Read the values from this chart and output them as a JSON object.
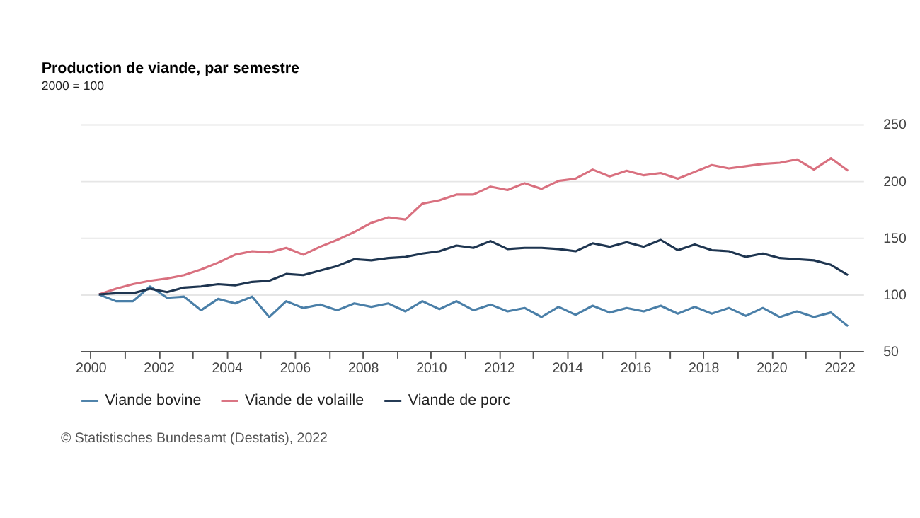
{
  "chart_data": {
    "type": "line",
    "title": "Production de viande, par semestre",
    "subtitle": "2000 = 100",
    "annotations": [
      "© Statistisches Bundesamt (Destatis), 2022"
    ],
    "x": [
      2000.25,
      2000.75,
      2001.25,
      2001.75,
      2002.25,
      2002.75,
      2003.25,
      2003.75,
      2004.25,
      2004.75,
      2005.25,
      2005.75,
      2006.25,
      2006.75,
      2007.25,
      2007.75,
      2008.25,
      2008.75,
      2009.25,
      2009.75,
      2010.25,
      2010.75,
      2011.25,
      2011.75,
      2012.25,
      2012.75,
      2013.25,
      2013.75,
      2014.25,
      2014.75,
      2015.25,
      2015.75,
      2016.25,
      2016.75,
      2017.25,
      2017.75,
      2018.25,
      2018.75,
      2019.25,
      2019.75,
      2020.25,
      2020.75,
      2021.25,
      2021.75,
      2022.25
    ],
    "series": [
      {
        "name": "Viande bovine",
        "color": "#4a7fa8",
        "values": [
          100,
          94,
          94,
          107,
          97,
          98,
          86,
          96,
          92,
          98,
          80,
          94,
          88,
          91,
          86,
          92,
          89,
          92,
          85,
          94,
          87,
          94,
          86,
          91,
          85,
          88,
          80,
          89,
          82,
          90,
          84,
          88,
          85,
          90,
          83,
          89,
          83,
          88,
          81,
          88,
          80,
          85,
          80,
          84,
          72
        ]
      },
      {
        "name": "Viande de volaille",
        "color": "#d9707f",
        "values": [
          100,
          105,
          109,
          112,
          114,
          117,
          122,
          128,
          135,
          138,
          137,
          141,
          135,
          142,
          148,
          155,
          163,
          168,
          166,
          180,
          183,
          188,
          188,
          195,
          192,
          198,
          193,
          200,
          202,
          210,
          204,
          209,
          205,
          207,
          202,
          208,
          214,
          211,
          213,
          215,
          216,
          219,
          210,
          220,
          209
        ]
      },
      {
        "name": "Viande de porc",
        "color": "#1e3550",
        "values": [
          100,
          101,
          101,
          105,
          102,
          106,
          107,
          109,
          108,
          111,
          112,
          118,
          117,
          121,
          125,
          131,
          130,
          132,
          133,
          136,
          138,
          143,
          141,
          147,
          140,
          141,
          141,
          140,
          138,
          145,
          142,
          146,
          142,
          148,
          139,
          144,
          139,
          138,
          133,
          136,
          132,
          131,
          130,
          126,
          117
        ]
      }
    ],
    "xlim": [
      1999.7,
      2022.7
    ],
    "xticks": [
      2000,
      {
        "value": 2001,
        "label": null
      },
      2002,
      {
        "value": 2003,
        "label": null
      },
      2004,
      {
        "value": 2005,
        "label": null
      },
      2006,
      {
        "value": 2007,
        "label": null
      },
      2008,
      {
        "value": 2009,
        "label": null
      },
      2010,
      {
        "value": 2011,
        "label": null
      },
      2012,
      {
        "value": 2013,
        "label": null
      },
      2014,
      {
        "value": 2015,
        "label": null
      },
      2016,
      {
        "value": 2017,
        "label": null
      },
      2018,
      {
        "value": 2019,
        "label": null
      },
      2020,
      {
        "value": 2021,
        "label": null
      },
      2022
    ],
    "ylim": [
      50,
      250
    ],
    "yticks": [
      50,
      100,
      150,
      200,
      250
    ],
    "grid": "y",
    "legend": "bottom",
    "marker": "none",
    "line_style": "solid"
  }
}
